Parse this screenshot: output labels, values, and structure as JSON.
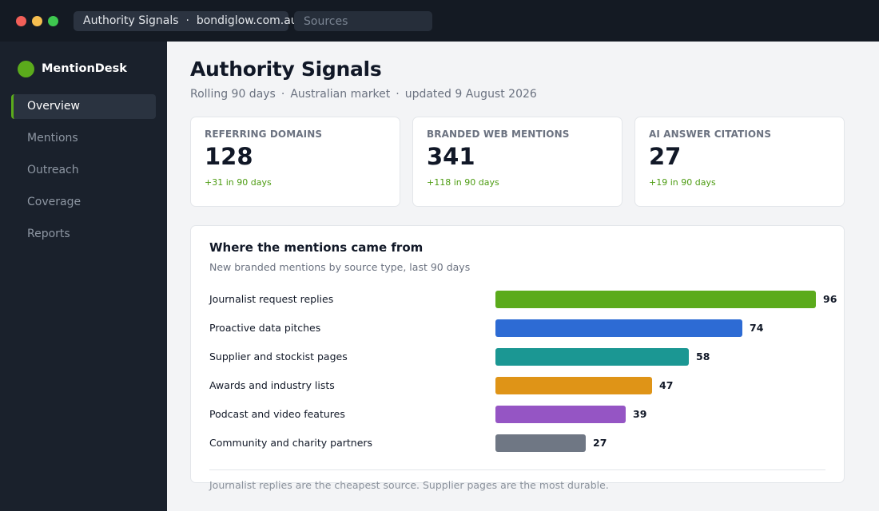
{
  "window": {
    "tab_title": "Authority Signals",
    "domain": "bondiglow.com.au",
    "search_placeholder": "Sources"
  },
  "sidebar": {
    "brand": "MentionDesk",
    "brand_color": "#5bab1c",
    "items": [
      {
        "label": "Overview",
        "active": true
      },
      {
        "label": "Mentions",
        "active": false
      },
      {
        "label": "Outreach",
        "active": false
      },
      {
        "label": "Coverage",
        "active": false
      },
      {
        "label": "Reports",
        "active": false
      }
    ]
  },
  "header": {
    "title": "Authority Signals",
    "meta": [
      "Rolling 90 days",
      "Australian market",
      "updated 9 August 2026"
    ]
  },
  "stats": [
    {
      "label": "REFERRING DOMAINS",
      "value": "128",
      "delta": "+31 in 90 days"
    },
    {
      "label": "BRANDED WEB MENTIONS",
      "value": "341",
      "delta": "+118 in 90 days"
    },
    {
      "label": "AI ANSWER CITATIONS",
      "value": "27",
      "delta": "+19 in 90 days"
    }
  ],
  "chart_data": {
    "type": "bar",
    "orientation": "horizontal",
    "title": "Where the mentions came from",
    "subtitle": "New branded mentions by source type, last 90 days",
    "categories": [
      "Journalist request replies",
      "Proactive data pitches",
      "Supplier and stockist pages",
      "Awards and industry lists",
      "Podcast and video features",
      "Community and charity partners"
    ],
    "values": [
      96,
      74,
      58,
      47,
      39,
      27
    ],
    "colors": [
      "#5bab1c",
      "#2d6bd4",
      "#1b9793",
      "#df9417",
      "#9555c4",
      "#6f7784"
    ],
    "grid": false,
    "legend": "none"
  },
  "footnote": "Journalist replies are the cheapest source. Supplier pages are the most durable."
}
